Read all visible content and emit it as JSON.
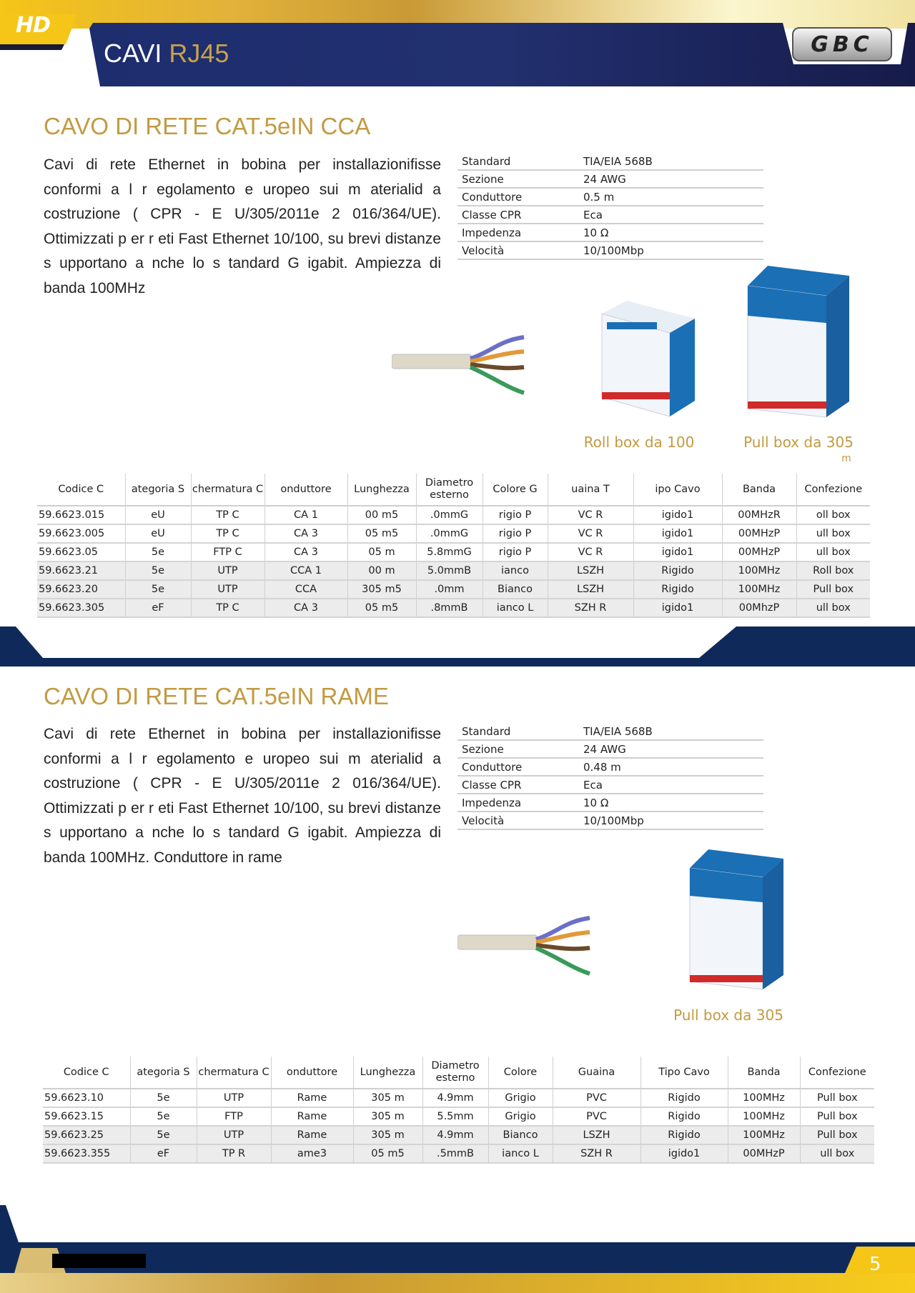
{
  "header": {
    "badge": "HD",
    "title": "CAVI ",
    "title_accent": "RJ45",
    "brand": "GBC"
  },
  "colors": {
    "navy": "#1c2a66",
    "gold": "#c29a42",
    "row_shade": "#ececec"
  },
  "sections": [
    {
      "title": "CAVO DI RETE CAT.5eIN CCA",
      "description": "Cavi di rete Ethernet in bobina per installazionifisse conformi a l r egolamento e uropeo  sui m aterialid a costruzione ( CPR -  E U/305/2011e  2 016/364/UE). Ottimizzati p er r eti  Fast  Ethernet  10/100, su  brevi distanze s  upportano a  nche   lo s  tandard G  igabit. Ampiezza di banda 100MHz",
      "specs": [
        [
          "Standard",
          "TIA/EIA  568B"
        ],
        [
          "Sezione",
          "24 AWG"
        ],
        [
          "Conduttore",
          "0.5 m"
        ],
        [
          "Classe CPR",
          "Eca"
        ],
        [
          "Impedenza",
          "10  Ω"
        ],
        [
          "Velocità",
          "10/100Mbp"
        ]
      ],
      "captions": [
        "Roll box da 100",
        "Pull box da 305",
        "m"
      ],
      "table": {
        "headers": [
          "Codice C",
          "ategoria S",
          "chermatura C",
          "onduttore",
          "Lunghezza",
          "Diametro esterno",
          "Colore G",
          "uaina T",
          "ipo  Cavo",
          "Banda",
          "Confezione"
        ],
        "rows": [
          [
            "59.6623.015",
            "eU",
            "TP C",
            "CA 1",
            "00 m5",
            ".0mmG",
            "rigio P",
            "VC  R",
            "igido1",
            "00MHzR",
            "oll box"
          ],
          [
            "59.6623.005",
            "eU",
            "TP C",
            "CA 3",
            "05 m5",
            ".0mmG",
            "rigio P",
            "VC  R",
            "igido1",
            "00MHzP",
            "ull box"
          ],
          [
            "59.6623.05",
            "5e",
            "FTP C",
            "CA 3",
            "05 m",
            "5.8mmG",
            "rigio P",
            "VC  R",
            "igido1",
            "00MHzP",
            "ull box"
          ],
          [
            "59.6623.21",
            "5e",
            "UTP",
            "CCA 1",
            "00 m",
            "5.0mmB",
            "ianco",
            "LSZH",
            "Rigido",
            "100MHz",
            "Roll box"
          ],
          [
            "59.6623.20",
            "5e",
            "UTP",
            "CCA",
            "305 m5",
            ".0mm",
            "Bianco",
            "LSZH",
            "Rigido",
            "100MHz",
            "Pull box"
          ],
          [
            "59.6623.305",
            "eF",
            "TP C",
            "CA 3",
            "05 m5",
            ".8mmB",
            "ianco L",
            "SZH  R",
            "igido1",
            "00MhzP",
            "ull box"
          ]
        ],
        "shaded_rows": [
          3,
          4,
          5
        ]
      }
    },
    {
      "title": "CAVO DI RETE CAT.5eIN RAME",
      "description": "Cavi di rete Ethernet in bobina per installazionifisse conformi a l r egolamento e uropeo  sui m aterialid a costruzione ( CPR -  E U/305/2011e  2 016/364/UE). Ottimizzati p er r eti  Fast  Ethernet  10/100, su  brevi distanze s  upportano a  nche   lo s  tandard G  igabit. Ampiezza di banda 100MHz. Conduttore in rame",
      "specs": [
        [
          "Standard",
          "TIA/EIA  568B"
        ],
        [
          "Sezione",
          "24 AWG"
        ],
        [
          "Conduttore",
          "0.48 m"
        ],
        [
          "Classe CPR",
          "Eca"
        ],
        [
          "Impedenza",
          "10  Ω"
        ],
        [
          "Velocità",
          "10/100Mbp"
        ]
      ],
      "captions": [
        "Pull box da 305"
      ],
      "table": {
        "headers": [
          "Codice C",
          "ategoria S",
          "chermatura C",
          "onduttore",
          "Lunghezza",
          "Diametro esterno",
          "Colore",
          "Guaina",
          "Tipo  Cavo",
          "Banda",
          "Confezione"
        ],
        "rows": [
          [
            "59.6623.10",
            "5e",
            "UTP",
            "Rame",
            "305 m",
            "4.9mm",
            "Grigio",
            "PVC",
            "Rigido",
            "100MHz",
            "Pull box"
          ],
          [
            "59.6623.15",
            "5e",
            "FTP",
            "Rame",
            "305 m",
            "5.5mm",
            "Grigio",
            "PVC",
            "Rigido",
            "100MHz",
            "Pull box"
          ],
          [
            "59.6623.25",
            "5e",
            "UTP",
            "Rame",
            "305 m",
            "4.9mm",
            "Bianco",
            "LSZH",
            "Rigido",
            "100MHz",
            "Pull box"
          ],
          [
            "59.6623.355",
            "eF",
            "TP R",
            "ame3",
            "05 m5",
            ".5mmB",
            "ianco L",
            "SZH  R",
            "igido1",
            "00MHzP",
            "ull box"
          ]
        ],
        "shaded_rows": [
          2,
          3
        ]
      }
    }
  ],
  "footer": {
    "page_number": "5"
  }
}
